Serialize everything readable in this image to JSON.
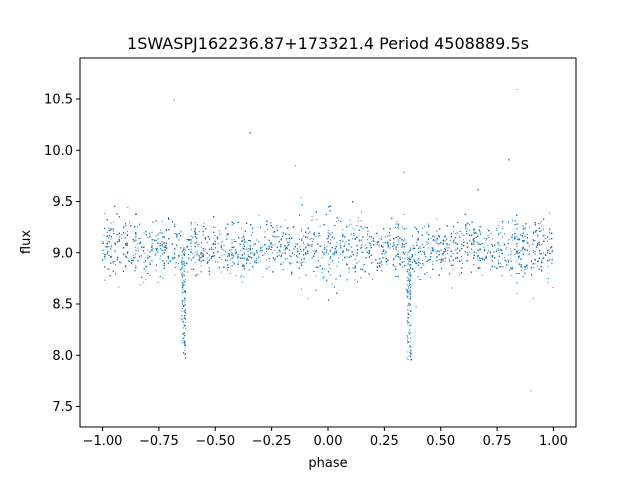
{
  "chart_data": {
    "type": "scatter",
    "title": "1SWASPJ162236.87+173321.4 Period 4508889.5s",
    "xlabel": "phase",
    "ylabel": "flux",
    "xlim": [
      -1.1,
      1.1
    ],
    "ylim": [
      7.3,
      10.9
    ],
    "x_ticks": [
      -1.0,
      -0.75,
      -0.5,
      -0.25,
      0.0,
      0.25,
      0.5,
      0.75,
      1.0
    ],
    "x_tick_labels": [
      "−1.00",
      "−0.75",
      "−0.50",
      "−0.25",
      "0.00",
      "0.25",
      "0.50",
      "0.75",
      "1.00"
    ],
    "y_ticks": [
      7.5,
      8.0,
      8.5,
      9.0,
      9.5,
      10.0,
      10.5
    ],
    "y_tick_labels": [
      "7.5",
      "8.0",
      "8.5",
      "9.0",
      "9.5",
      "10.0",
      "10.5"
    ],
    "grid": false,
    "marker_color": "#1f77b4",
    "series": [
      {
        "phase_range": [
          -1.0,
          1.0
        ],
        "baseline_flux": 9.05,
        "typical_scatter": 0.3,
        "dip_centers": [
          -0.64,
          0.36
        ],
        "dip_minimum_flux": 7.95,
        "brighter_regions": [
          [
            -1.0,
            -0.8
          ],
          [
            -0.1,
            0.15
          ],
          [
            0.8,
            1.0
          ]
        ],
        "outlier_flux_range": [
          7.45,
          10.75
        ]
      }
    ]
  }
}
